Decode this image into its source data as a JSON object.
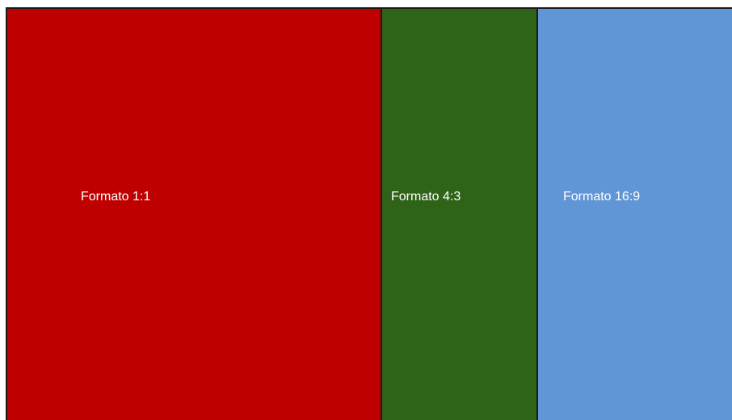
{
  "panels": [
    {
      "label": "Formato 1:1",
      "color": "#bf0000"
    },
    {
      "label": "Formato 4:3",
      "color": "#2e6318"
    },
    {
      "label": "Formato 16:9",
      "color": "#6196d6"
    }
  ]
}
